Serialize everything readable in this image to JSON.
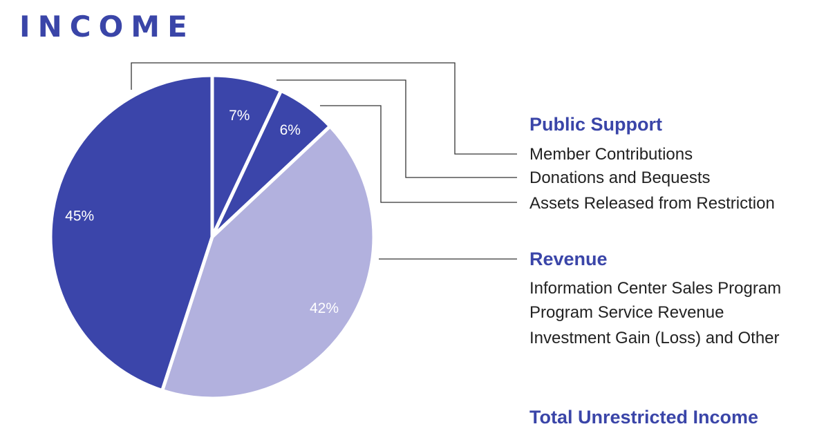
{
  "chart_data": {
    "type": "pie",
    "title": "INCOME",
    "slices": [
      {
        "label": "45%",
        "value": 45,
        "color": "#3b45aa"
      },
      {
        "label": "7%",
        "value": 7,
        "color": "#3b45aa"
      },
      {
        "label": "6%",
        "value": 6,
        "color": "#3b45aa"
      },
      {
        "label": "42%",
        "value": 42,
        "color": "#b2b1de"
      }
    ],
    "legend_groups": [
      {
        "heading": "Public Support",
        "items": [
          "Member Contributions",
          "Donations and Bequests",
          "Assets Released from Restriction"
        ]
      },
      {
        "heading": "Revenue",
        "items": [
          "Information Center Sales Program",
          "Program Service Revenue",
          "Investment Gain (Loss) and Other"
        ]
      }
    ],
    "footer": "Total Unrestricted Income"
  }
}
